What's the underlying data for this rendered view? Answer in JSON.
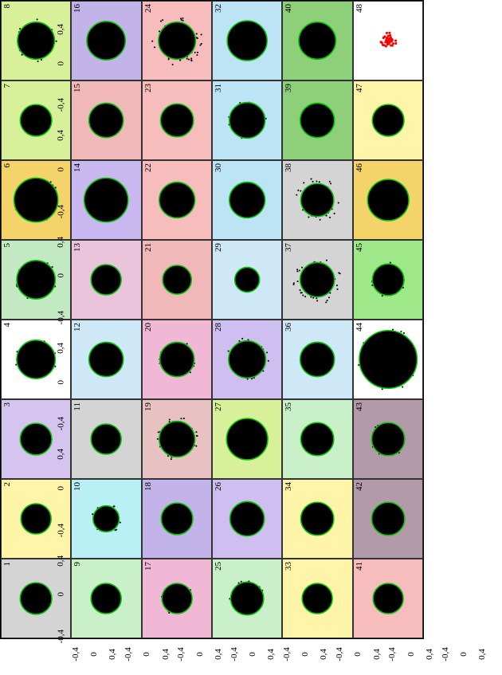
{
  "grid": {
    "rows": 6,
    "cols": 8
  },
  "axis": {
    "xlim": [
      -0.5,
      0.5
    ],
    "ylim": [
      -0.5,
      0.5
    ],
    "ticks": [
      "-0,4",
      "0",
      "0,4"
    ],
    "label_fontsize": 11
  },
  "circle_outline_color": "#00c800",
  "disc_fill_color": "#000000",
  "scatter_color": "#000000",
  "special_marker_color": "#ff0000",
  "panel_border_color": "#333333",
  "label_font": "Times New Roman",
  "panels": [
    {
      "id": 1,
      "bg": "#d4d4d4",
      "r": 0.23,
      "noise": 0.01
    },
    {
      "id": 2,
      "bg": "#fff4a8",
      "r": 0.22,
      "noise": 0.01
    },
    {
      "id": 3,
      "bg": "#d5c3f0",
      "r": 0.23,
      "noise": 0.01
    },
    {
      "id": 4,
      "bg": "#ffffff",
      "r": 0.28,
      "noise": 0.02
    },
    {
      "id": 5,
      "bg": "#c3e9c3",
      "r": 0.28,
      "noise": 0.02
    },
    {
      "id": 6,
      "bg": "#f5d36b",
      "r": 0.32,
      "noise": 0.02
    },
    {
      "id": 7,
      "bg": "#d9f09a",
      "r": 0.23,
      "noise": 0.01
    },
    {
      "id": 8,
      "bg": "#d9f09a",
      "r": 0.27,
      "noise": 0.04
    },
    {
      "id": 9,
      "bg": "#c9f0c9",
      "r": 0.22,
      "noise": 0.01
    },
    {
      "id": 10,
      "bg": "#b8f0f5",
      "r": 0.19,
      "noise": 0.03
    },
    {
      "id": 11,
      "bg": "#d4d4d4",
      "r": 0.22,
      "noise": 0.01
    },
    {
      "id": 12,
      "bg": "#cfe8f7",
      "r": 0.25,
      "noise": 0.01
    },
    {
      "id": 13,
      "bg": "#eac4da",
      "r": 0.22,
      "noise": 0.01
    },
    {
      "id": 14,
      "bg": "#c9b8f0",
      "r": 0.32,
      "noise": 0.01
    },
    {
      "id": 15,
      "bg": "#f0b8b8",
      "r": 0.25,
      "noise": 0.01
    },
    {
      "id": 16,
      "bg": "#c2b3e8",
      "r": 0.28,
      "noise": 0.01
    },
    {
      "id": 17,
      "bg": "#f0b8d4",
      "r": 0.22,
      "noise": 0.02
    },
    {
      "id": 18,
      "bg": "#c2b3e8",
      "r": 0.23,
      "noise": 0.01
    },
    {
      "id": 19,
      "bg": "#e8c2c2",
      "r": 0.26,
      "noise": 0.06
    },
    {
      "id": 20,
      "bg": "#f0b8d4",
      "r": 0.25,
      "noise": 0.02
    },
    {
      "id": 21,
      "bg": "#f0b8b8",
      "r": 0.21,
      "noise": 0.01
    },
    {
      "id": 22,
      "bg": "#f7bcbc",
      "r": 0.26,
      "noise": 0.01
    },
    {
      "id": 23,
      "bg": "#f7bcbc",
      "r": 0.24,
      "noise": 0.01
    },
    {
      "id": 24,
      "bg": "#f7bcbc",
      "r": 0.27,
      "noise": 0.1
    },
    {
      "id": 25,
      "bg": "#c9f0c9",
      "r": 0.24,
      "noise": 0.02
    },
    {
      "id": 26,
      "bg": "#cfbff0",
      "r": 0.25,
      "noise": 0.01
    },
    {
      "id": 27,
      "bg": "#d9f09a",
      "r": 0.3,
      "noise": 0.01
    },
    {
      "id": 28,
      "bg": "#cfbff0",
      "r": 0.27,
      "noise": 0.04
    },
    {
      "id": 29,
      "bg": "#cfe8f7",
      "r": 0.18,
      "noise": 0.01
    },
    {
      "id": 30,
      "bg": "#bde4f5",
      "r": 0.26,
      "noise": 0.01
    },
    {
      "id": 31,
      "bg": "#bde4f5",
      "r": 0.26,
      "noise": 0.02
    },
    {
      "id": 32,
      "bg": "#bde4f5",
      "r": 0.29,
      "noise": 0.01
    },
    {
      "id": 33,
      "bg": "#fff4a8",
      "r": 0.22,
      "noise": 0.01
    },
    {
      "id": 34,
      "bg": "#fff4a8",
      "r": 0.24,
      "noise": 0.01
    },
    {
      "id": 35,
      "bg": "#c9f0c9",
      "r": 0.24,
      "noise": 0.01
    },
    {
      "id": 36,
      "bg": "#cfe8f7",
      "r": 0.25,
      "noise": 0.01
    },
    {
      "id": 37,
      "bg": "#d4d4d4",
      "r": 0.25,
      "noise": 0.1
    },
    {
      "id": 38,
      "bg": "#d4d4d4",
      "r": 0.24,
      "noise": 0.08
    },
    {
      "id": 39,
      "bg": "#8ecf7a",
      "r": 0.25,
      "noise": 0.01
    },
    {
      "id": 40,
      "bg": "#8ecf7a",
      "r": 0.27,
      "noise": 0.01
    },
    {
      "id": 41,
      "bg": "#f7bcbc",
      "r": 0.22,
      "noise": 0.01
    },
    {
      "id": 42,
      "bg": "#b39aa8",
      "r": 0.24,
      "noise": 0.01
    },
    {
      "id": 43,
      "bg": "#b39aa8",
      "r": 0.24,
      "noise": 0.02
    },
    {
      "id": 44,
      "bg": "#ffffff",
      "r": 0.42,
      "noise": 0.03
    },
    {
      "id": 45,
      "bg": "#9fe88a",
      "r": 0.23,
      "noise": 0.02
    },
    {
      "id": 46,
      "bg": "#f5d36b",
      "r": 0.3,
      "noise": 0.01
    },
    {
      "id": 47,
      "bg": "#fff4a8",
      "r": 0.23,
      "noise": 0.01
    },
    {
      "id": 48,
      "bg": "#ffffff",
      "r": 0.0,
      "noise": 0.0,
      "special": "red_star"
    }
  ]
}
